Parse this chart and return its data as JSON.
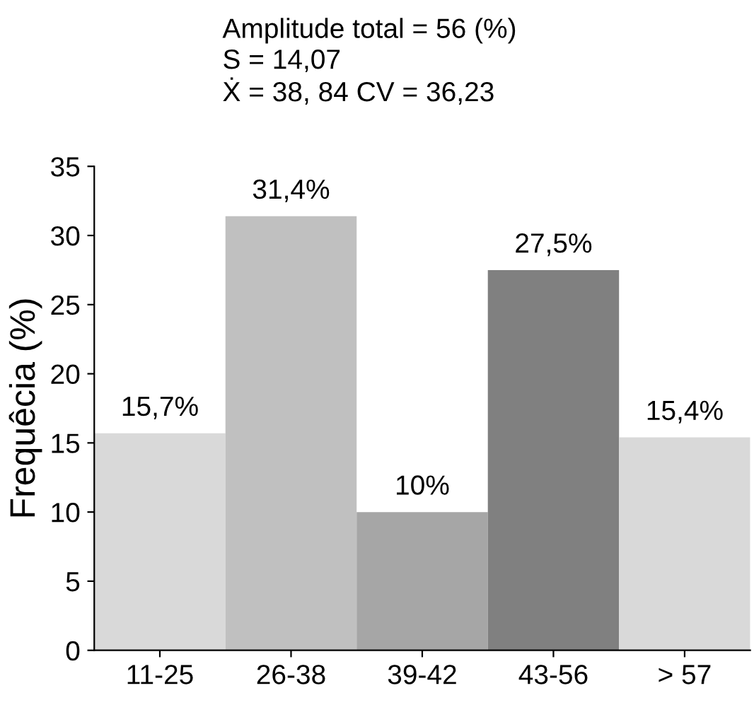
{
  "chart_data": {
    "type": "bar",
    "title": "Amplitude total = 56 (%)",
    "annotations": [
      "S = 14,07",
      "Ẋ = 38, 84 CV = 36,23"
    ],
    "ylabel": "Frequêcia (%)",
    "categories": [
      "11-25",
      "26-38",
      "39-42",
      "43-56",
      "> 57"
    ],
    "values": [
      15.7,
      31.4,
      10,
      27.5,
      15.4
    ],
    "value_labels": [
      "15,7%",
      "31,4%",
      "10%",
      "27,5%",
      "15,4%"
    ],
    "colors": [
      "#d9d9d9",
      "#c0c0c0",
      "#a6a6a6",
      "#808080",
      "#d9d9d9"
    ],
    "ylim": [
      0,
      35
    ],
    "yticks": [
      0,
      5,
      10,
      15,
      20,
      25,
      30,
      35
    ],
    "grid": false,
    "legend": false
  }
}
